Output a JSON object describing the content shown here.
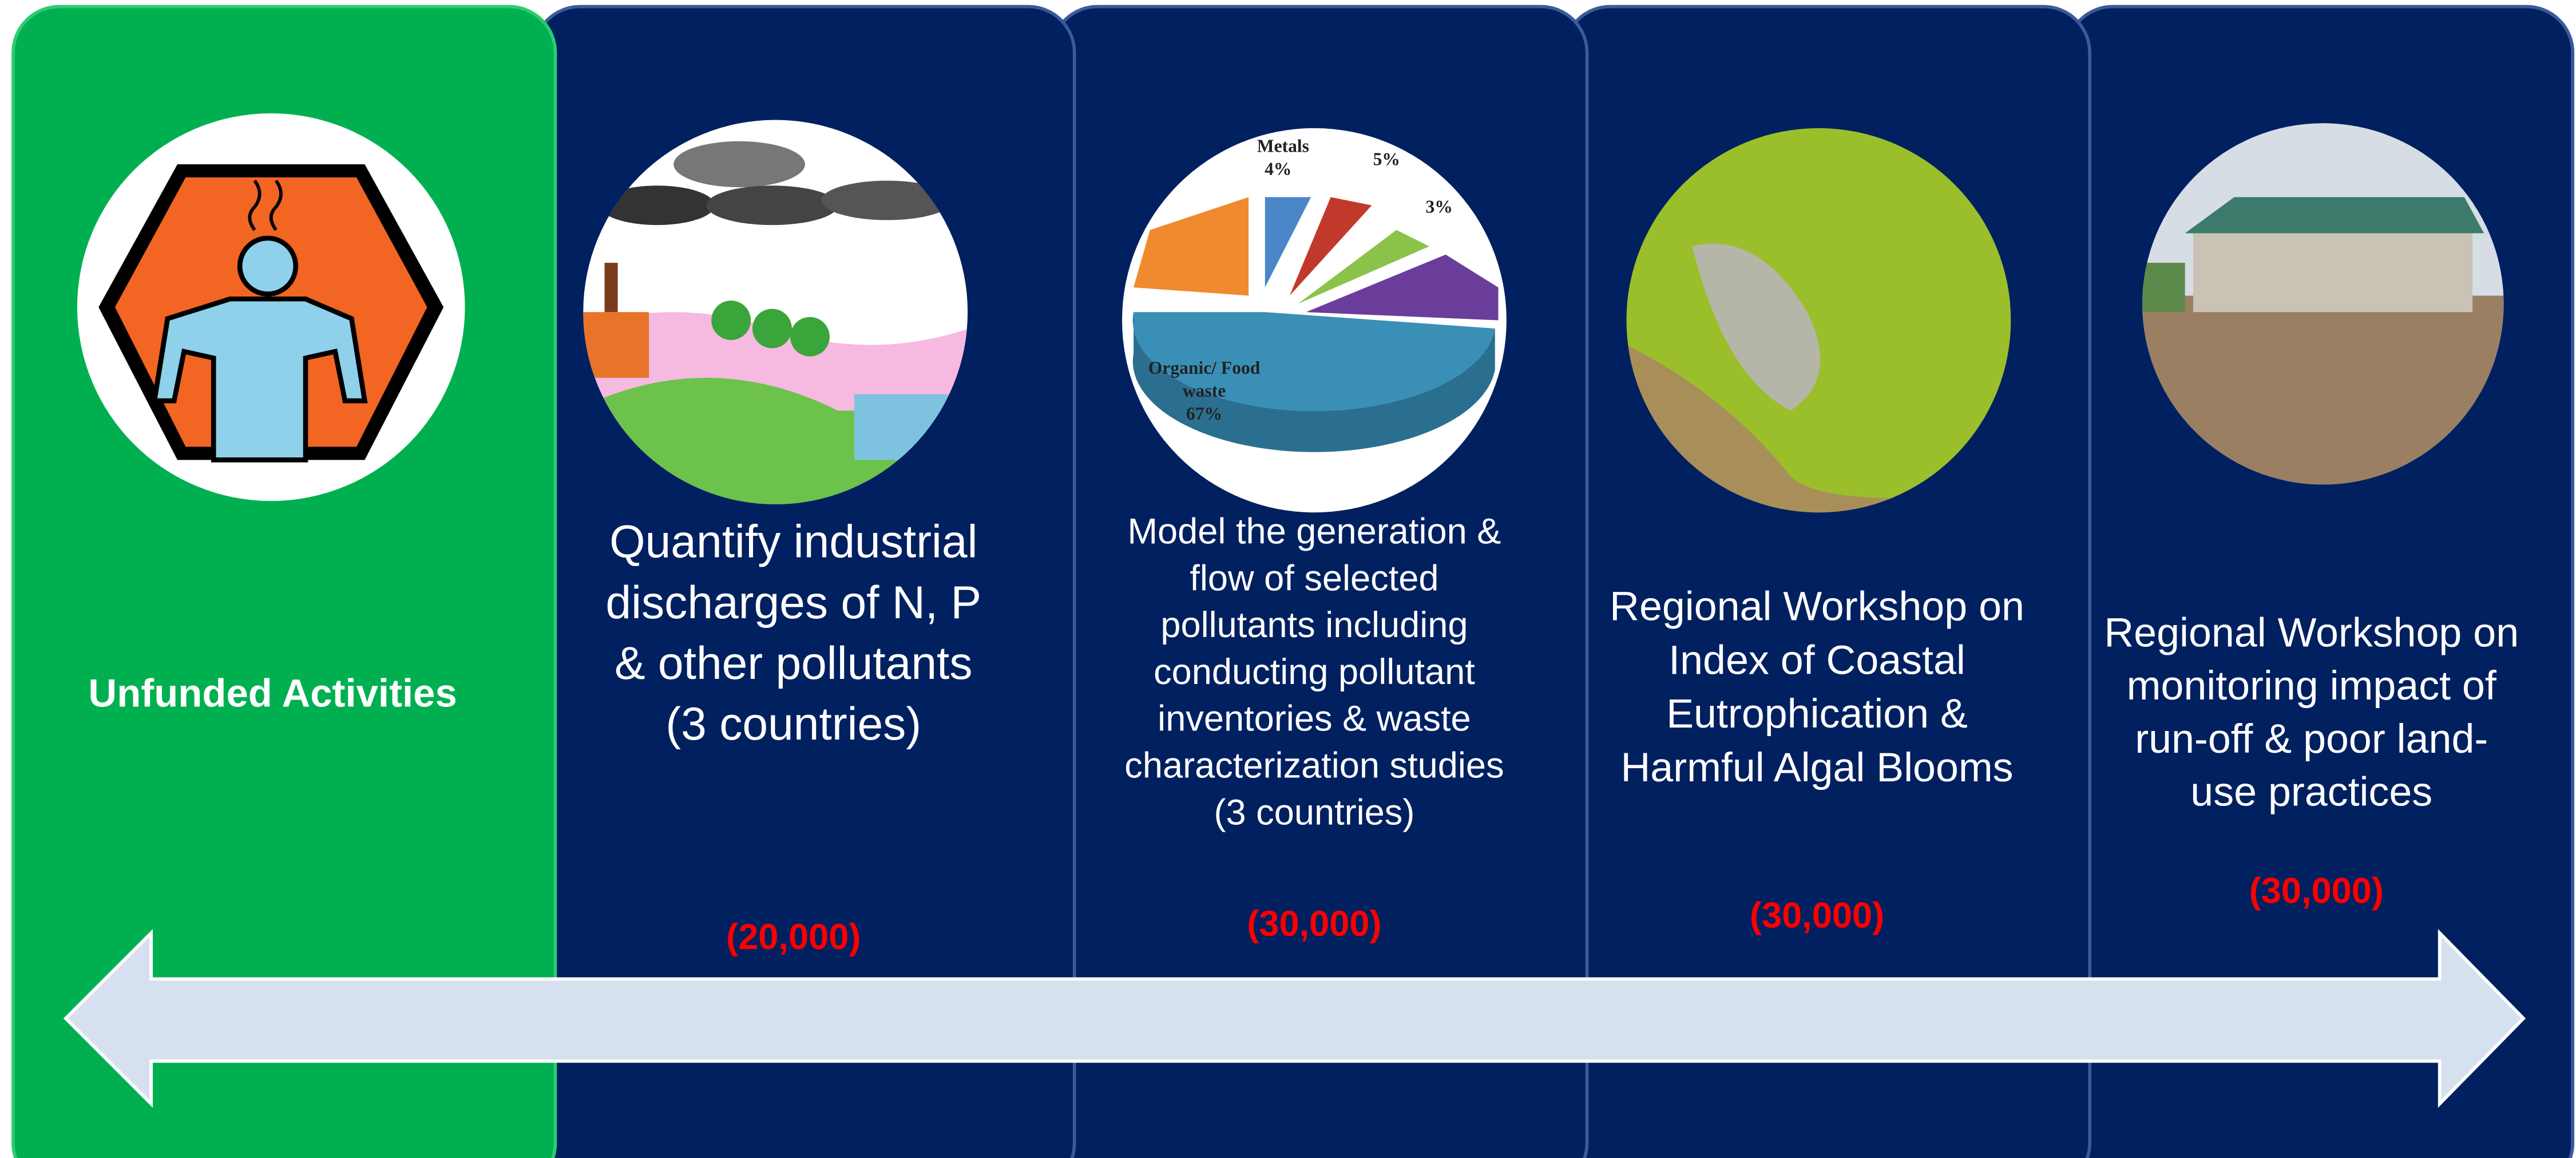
{
  "panels": [
    {
      "title_lines": [
        "Unfunded Activities"
      ]
    },
    {
      "title_lines": [
        "Quantify industrial",
        "discharges of N, P",
        "& other pollutants",
        "(3 countries)"
      ],
      "amount": "(20,000)"
    },
    {
      "title_lines": [
        "Model the generation &",
        "flow of selected",
        "pollutants including",
        "conducting pollutant",
        "inventories & waste",
        "characterization studies",
        "(3 countries)"
      ],
      "amount": "(30,000)",
      "pie_labels": [
        "Metals",
        "4%",
        "5%",
        "3%",
        "Organic/ Food",
        "waste",
        "67%"
      ]
    },
    {
      "title_lines": [
        "Regional Workshop on",
        "Index of Coastal",
        "Eutrophication &",
        "Harmful Algal Blooms"
      ],
      "amount": "(30,000)"
    },
    {
      "title_lines": [
        "Regional Workshop on",
        "monitoring impact of",
        "run-off & poor land-",
        "use practices"
      ],
      "amount": "(30,000)"
    }
  ]
}
